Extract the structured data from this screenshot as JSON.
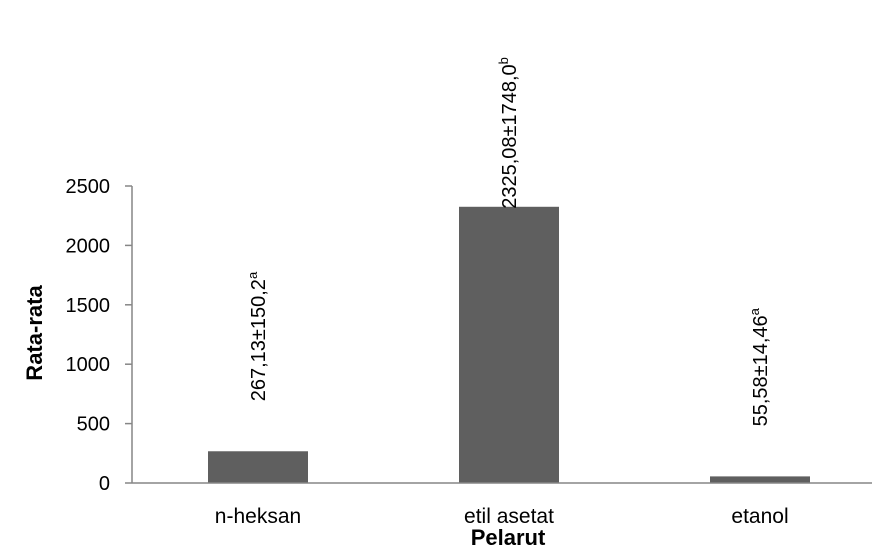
{
  "chart_data": {
    "type": "bar",
    "title": "",
    "xlabel": "Pelarut",
    "ylabel": "Rata-rata",
    "categories": [
      "n-heksan",
      "etil asetat",
      "etanol"
    ],
    "values": [
      267.13,
      2325.08,
      55.58
    ],
    "data_labels": [
      {
        "text": "267,13±150,2",
        "sup": "a"
      },
      {
        "text": "2325,08±1748,0",
        "sup": "b"
      },
      {
        "text": "55,58±14,46",
        "sup": "a"
      }
    ],
    "ylim": [
      0,
      2500
    ],
    "yticks": [
      0,
      500,
      1000,
      1500,
      2000,
      2500
    ],
    "ytick_labels": [
      "0",
      "500",
      "1000",
      "1500",
      "2000",
      "2500"
    ],
    "grid": false,
    "legend": "none",
    "bar_color": "#5f5f5f",
    "axis_color": "#868686"
  }
}
